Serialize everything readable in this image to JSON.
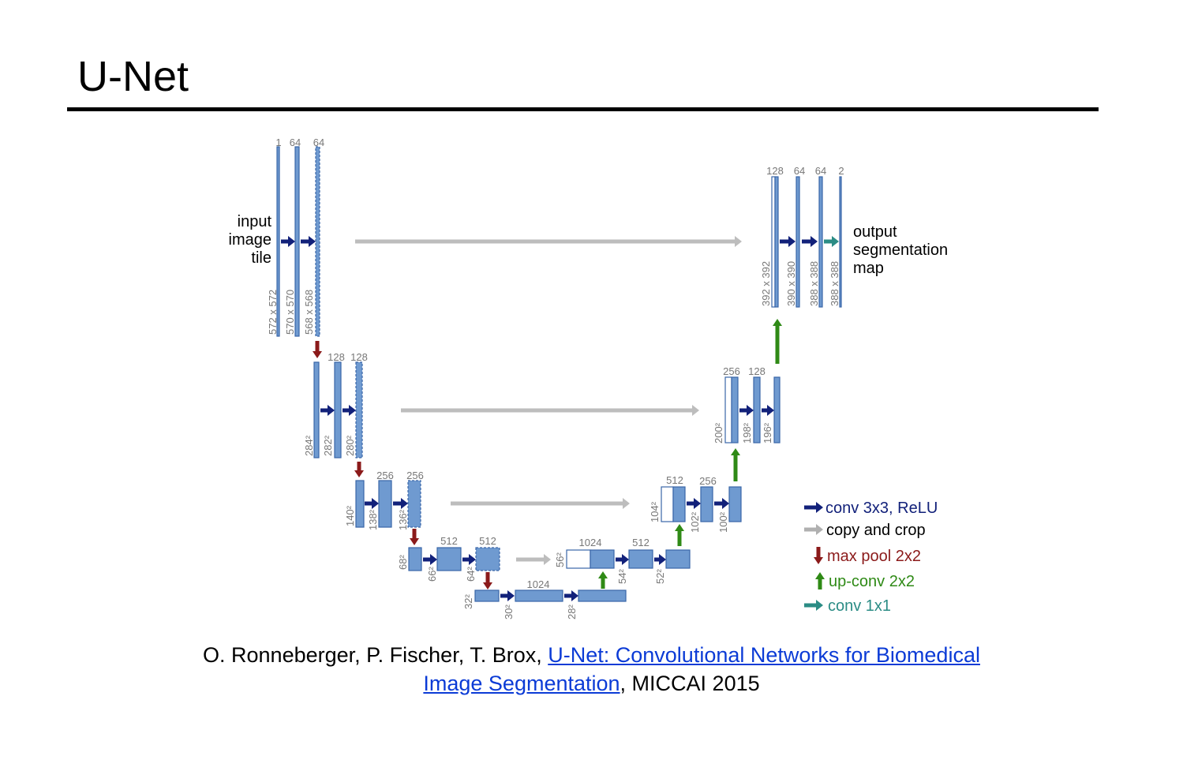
{
  "title": "U-Net",
  "colors": {
    "block": "#6f9ad0",
    "block_edge": "#3a66a8",
    "conv_arrow": "#12217a",
    "copy_arrow": "#bdbdbd",
    "pool_arrow": "#8b1a1a",
    "upconv_arrow": "#2f8a16",
    "conv1x1_arrow": "#2b8c85",
    "small_label": "#777777",
    "link": "#0b3bd6"
  },
  "diagram": {
    "input_label": [
      "input",
      "image",
      "tile"
    ],
    "output_label": [
      "output",
      "segmentation",
      "map"
    ],
    "channel_labels": [
      "1",
      "64",
      "64",
      "128",
      "128",
      "256",
      "256",
      "512",
      "512",
      "1024",
      "1024",
      "512",
      "512",
      "256",
      "256",
      "128",
      "128",
      "64",
      "64",
      "2"
    ],
    "size_labels": [
      "572 x 572",
      "570 x 570",
      "568 x 568",
      "284²",
      "282²",
      "280²",
      "140²",
      "138²",
      "136²",
      "68²",
      "66²",
      "64²",
      "32²",
      "30²",
      "28²",
      "56²",
      "54²",
      "52²",
      "104²",
      "102²",
      "100²",
      "200²",
      "198²",
      "196²",
      "392 x 392",
      "390 x 390",
      "388 x 388",
      "388 x 388"
    ]
  },
  "legend": [
    {
      "label": "conv 3x3, ReLU",
      "icon": "right-arrow-icon",
      "color": "#12217a"
    },
    {
      "label": "copy and crop",
      "icon": "right-arrow-icon",
      "color": "#b0b0b0"
    },
    {
      "label": "max pool 2x2",
      "icon": "down-arrow-icon",
      "color": "#8b1a1a"
    },
    {
      "label": "up-conv 2x2",
      "icon": "up-arrow-icon",
      "color": "#2f8a16"
    },
    {
      "label": "conv 1x1",
      "icon": "right-arrow-icon",
      "color": "#2b8c85"
    }
  ],
  "citation": {
    "authors": "O. Ronneberger, P. Fischer, T. Brox, ",
    "link_part1": "U-Net: Convolutional Networks for Biomedical ",
    "link_part2": "Image Segmentation",
    "venue": ", MICCAI 2015"
  }
}
